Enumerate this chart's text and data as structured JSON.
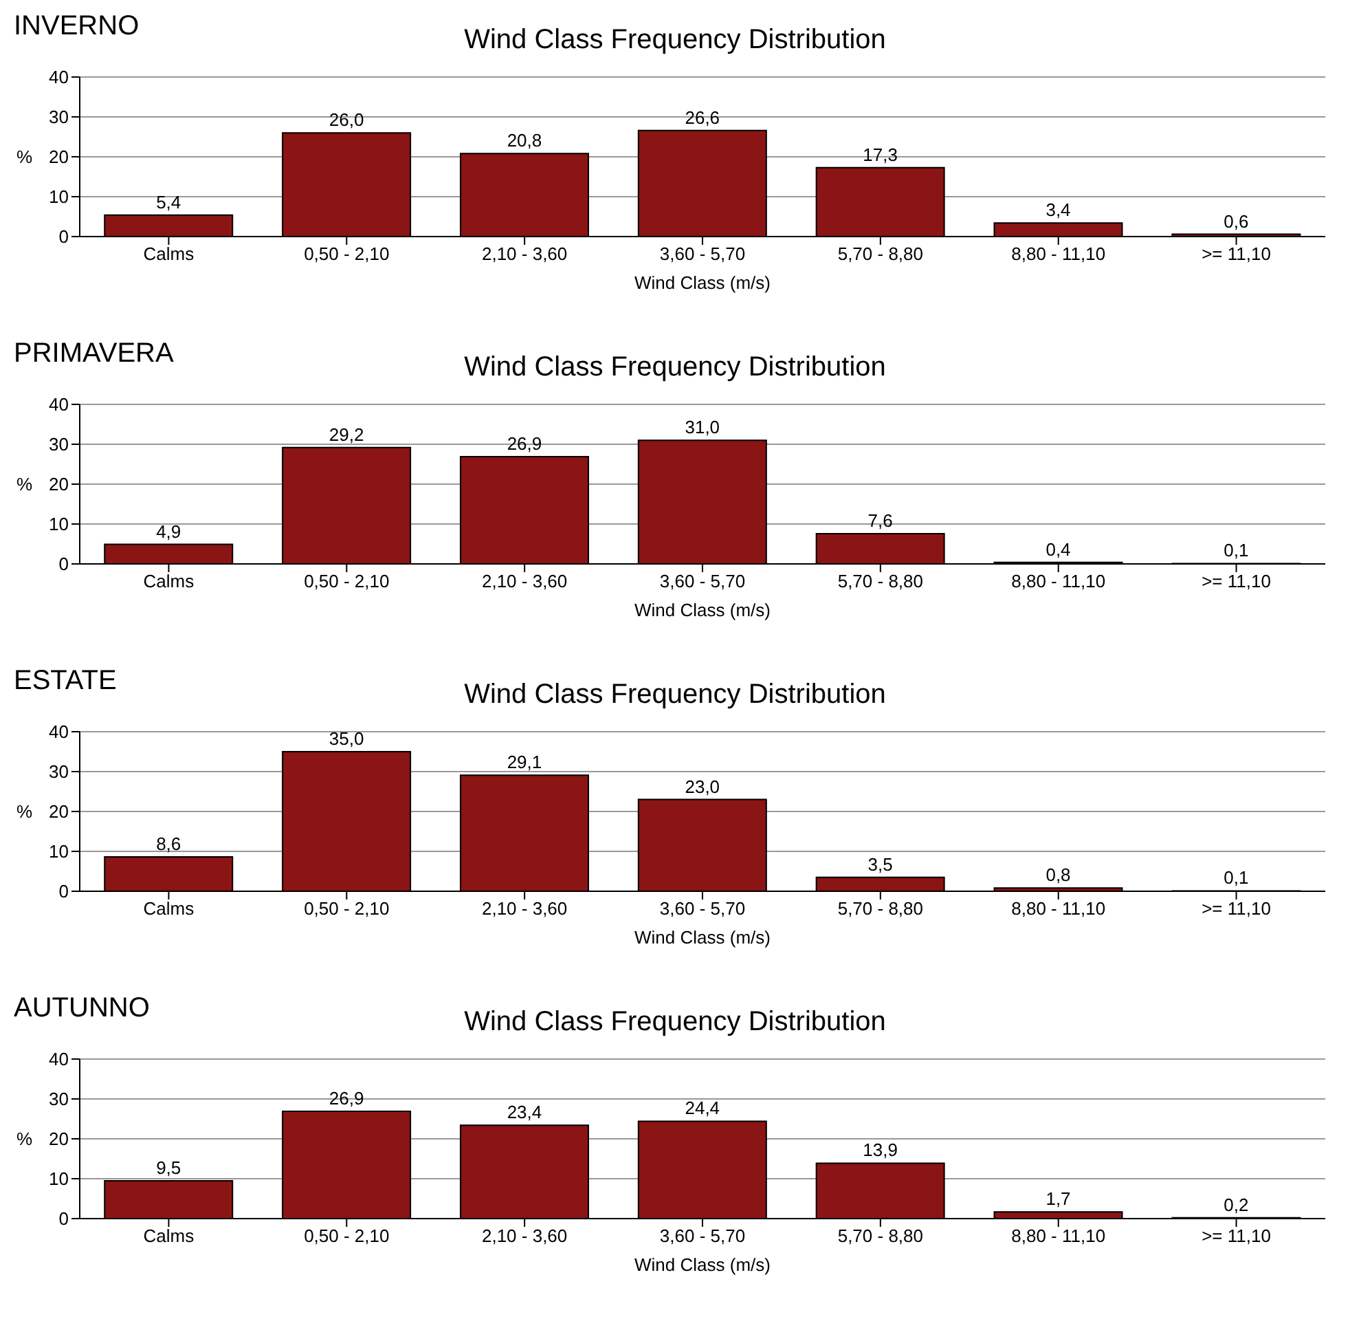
{
  "chart_data": [
    {
      "type": "bar",
      "subtitle": "INVERNO",
      "title": "Wind Class Frequency Distribution",
      "xlabel": "Wind Class (m/s)",
      "ylabel": "%",
      "categories": [
        "Calms",
        "0,50 - 2,10",
        "2,10 - 3,60",
        "3,60 - 5,70",
        "5,70 - 8,80",
        "8,80 - 11,10",
        ">= 11,10"
      ],
      "values": [
        5.4,
        26.0,
        20.8,
        26.6,
        17.3,
        3.4,
        0.6
      ],
      "value_labels": [
        "5,4",
        "26,0",
        "20,8",
        "26,6",
        "17,3",
        "3,4",
        "0,6"
      ],
      "color": "#8b1414",
      "ylim": [
        0,
        40
      ],
      "yticks": [
        0,
        10,
        20,
        30,
        40
      ],
      "grid": "y"
    },
    {
      "type": "bar",
      "subtitle": "PRIMAVERA",
      "title": "Wind Class Frequency Distribution",
      "xlabel": "Wind Class (m/s)",
      "ylabel": "%",
      "categories": [
        "Calms",
        "0,50 - 2,10",
        "2,10 - 3,60",
        "3,60 - 5,70",
        "5,70 - 8,80",
        "8,80 - 11,10",
        ">= 11,10"
      ],
      "values": [
        4.9,
        29.2,
        26.9,
        31.0,
        7.6,
        0.4,
        0.1
      ],
      "value_labels": [
        "4,9",
        "29,2",
        "26,9",
        "31,0",
        "7,6",
        "0,4",
        "0,1"
      ],
      "color": "#8b1414",
      "ylim": [
        0,
        40
      ],
      "yticks": [
        0,
        10,
        20,
        30,
        40
      ],
      "grid": "y"
    },
    {
      "type": "bar",
      "subtitle": "ESTATE",
      "title": "Wind Class Frequency Distribution",
      "xlabel": "Wind Class (m/s)",
      "ylabel": "%",
      "categories": [
        "Calms",
        "0,50 - 2,10",
        "2,10 - 3,60",
        "3,60 - 5,70",
        "5,70 - 8,80",
        "8,80 - 11,10",
        ">= 11,10"
      ],
      "values": [
        8.6,
        35.0,
        29.1,
        23.0,
        3.5,
        0.8,
        0.1
      ],
      "value_labels": [
        "8,6",
        "35,0",
        "29,1",
        "23,0",
        "3,5",
        "0,8",
        "0,1"
      ],
      "color": "#8b1414",
      "ylim": [
        0,
        40
      ],
      "yticks": [
        0,
        10,
        20,
        30,
        40
      ],
      "grid": "y"
    },
    {
      "type": "bar",
      "subtitle": "AUTUNNO",
      "title": "Wind Class Frequency Distribution",
      "xlabel": "Wind Class (m/s)",
      "ylabel": "%",
      "categories": [
        "Calms",
        "0,50 - 2,10",
        "2,10 - 3,60",
        "3,60 - 5,70",
        "5,70 - 8,80",
        "8,80 - 11,10",
        ">= 11,10"
      ],
      "values": [
        9.5,
        26.9,
        23.4,
        24.4,
        13.9,
        1.7,
        0.2
      ],
      "value_labels": [
        "9,5",
        "26,9",
        "23,4",
        "24,4",
        "13,9",
        "1,7",
        "0,2"
      ],
      "color": "#8b1414",
      "ylim": [
        0,
        40
      ],
      "yticks": [
        0,
        10,
        20,
        30,
        40
      ],
      "grid": "y"
    }
  ]
}
